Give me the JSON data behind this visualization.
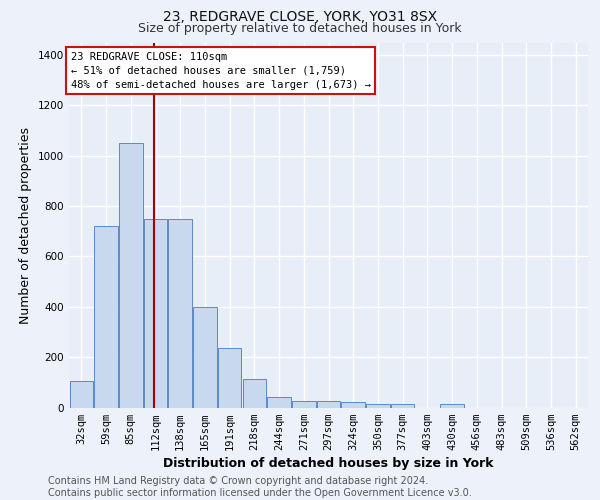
{
  "title": "23, REDGRAVE CLOSE, YORK, YO31 8SX",
  "subtitle": "Size of property relative to detached houses in York",
  "xlabel": "Distribution of detached houses by size in York",
  "ylabel": "Number of detached properties",
  "bar_labels": [
    "32sqm",
    "59sqm",
    "85sqm",
    "112sqm",
    "138sqm",
    "165sqm",
    "191sqm",
    "218sqm",
    "244sqm",
    "271sqm",
    "297sqm",
    "324sqm",
    "350sqm",
    "377sqm",
    "403sqm",
    "430sqm",
    "456sqm",
    "483sqm",
    "509sqm",
    "536sqm",
    "562sqm"
  ],
  "bar_values": [
    105,
    720,
    1050,
    750,
    750,
    400,
    235,
    115,
    40,
    27,
    27,
    22,
    15,
    12,
    0,
    12,
    0,
    0,
    0,
    0,
    0
  ],
  "bar_color": "#c8d8ef",
  "bar_edge_color": "#5b8ac7",
  "ylim": [
    0,
    1450
  ],
  "yticks": [
    0,
    200,
    400,
    600,
    800,
    1000,
    1200,
    1400
  ],
  "red_line_x": 2.93,
  "red_line_color": "#aa0000",
  "annotation_title": "23 REDGRAVE CLOSE: 110sqm",
  "annotation_line1": "← 51% of detached houses are smaller (1,759)",
  "annotation_line2": "48% of semi-detached houses are larger (1,673) →",
  "annotation_box_color": "#ffffff",
  "annotation_box_edge": "#cc1111",
  "footer_line1": "Contains HM Land Registry data © Crown copyright and database right 2024.",
  "footer_line2": "Contains public sector information licensed under the Open Government Licence v3.0.",
  "background_color": "#edf1fa",
  "plot_bg_color": "#e8eef8",
  "grid_color": "#ffffff",
  "title_fontsize": 10,
  "subtitle_fontsize": 9,
  "axis_label_fontsize": 9,
  "tick_fontsize": 7.5,
  "annotation_fontsize": 7.5,
  "footer_fontsize": 7
}
